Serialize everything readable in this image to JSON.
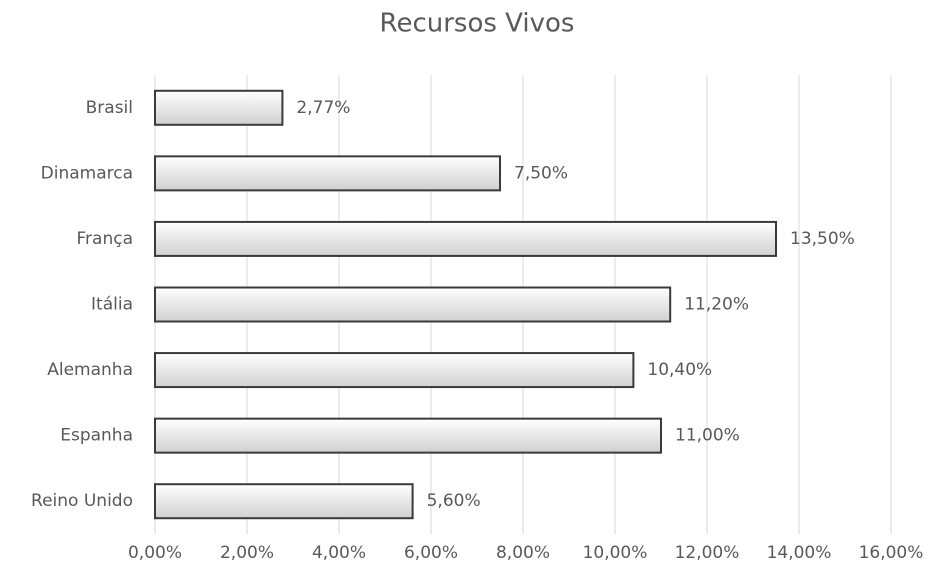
{
  "chart_data": {
    "type": "bar",
    "orientation": "horizontal",
    "title": "Recursos  Vivos",
    "categories": [
      "Brasil",
      "Dinamarca",
      "França",
      "Itália",
      "Alemanha",
      "Espanha",
      "Reino Unido"
    ],
    "values": [
      2.77,
      7.5,
      13.5,
      11.2,
      10.4,
      11.0,
      5.6
    ],
    "value_labels": [
      "2,77%",
      "7,50%",
      "13,50%",
      "11,20%",
      "10,40%",
      "11,00%",
      "5,60%"
    ],
    "color": "#d0d0d0",
    "edge_color": "#3a3a3a",
    "xlim": [
      0,
      16
    ],
    "xticks": [
      {
        "value": 0,
        "label": "0,00%"
      },
      {
        "value": 2,
        "label": "2,00%"
      },
      {
        "value": 4,
        "label": "4,00%"
      },
      {
        "value": 6,
        "label": "6,00%"
      },
      {
        "value": 8,
        "label": "8,00%"
      },
      {
        "value": 10,
        "label": "10,00%"
      },
      {
        "value": 12,
        "label": "12,00%"
      },
      {
        "value": 14,
        "label": "14,00%"
      },
      {
        "value": 16,
        "label": "16,00%"
      }
    ],
    "grid": true
  }
}
